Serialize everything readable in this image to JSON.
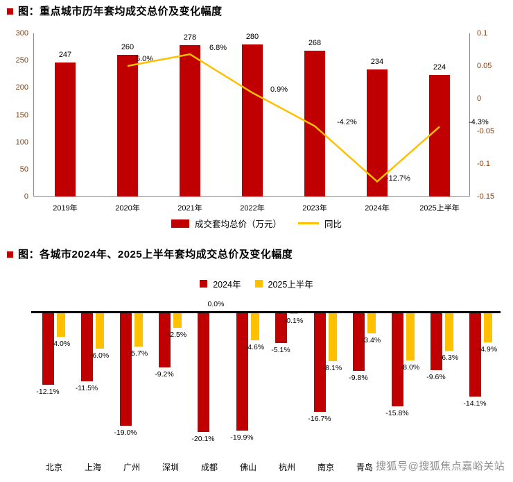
{
  "chart_data": [
    {
      "type": "bar+line",
      "title": "图：重点城市历年套均成交总价及变化幅度",
      "categories": [
        "2019年",
        "2020年",
        "2021年",
        "2022年",
        "2023年",
        "2024年",
        "2025上半年"
      ],
      "bar_series": {
        "name": "成交套均总价（万元）",
        "color": "#c00000",
        "values": [
          247,
          260,
          278,
          280,
          268,
          234,
          224
        ]
      },
      "line_series": {
        "name": "同比",
        "color": "#ffc000",
        "values": [
          null,
          0.05,
          0.068,
          0.009,
          -0.042,
          -0.127,
          -0.043
        ],
        "labels": [
          "",
          "5.0%",
          "6.8%",
          "0.9%",
          "-4.2%",
          "-12.7%",
          "-4.3%"
        ]
      },
      "left_axis": {
        "ticks": [
          0,
          50,
          100,
          150,
          200,
          250,
          300
        ],
        "max": 300
      },
      "right_axis": {
        "ticks": [
          "0.1",
          "0.05",
          "0",
          "-0.05",
          "-0.1",
          "-0.15"
        ],
        "max": 0.1,
        "min": -0.15
      },
      "legend_position": "bottom"
    },
    {
      "type": "grouped-bar",
      "title": "图：各城市2024年、2025上半年套均成交总价及变化幅度",
      "categories": [
        "北京",
        "上海",
        "广州",
        "深圳",
        "成都",
        "佛山",
        "杭州",
        "南京",
        "青岛",
        "",
        "",
        ""
      ],
      "series": [
        {
          "name": "2024年",
          "color": "#c00000",
          "values": [
            -12.1,
            -11.5,
            -19.0,
            -9.2,
            -20.1,
            -19.9,
            -5.1,
            -16.7,
            -9.8,
            -15.8,
            -9.6,
            -14.1
          ],
          "labels": [
            "-12.1%",
            "-11.5%",
            "-19.0%",
            "-9.2%",
            "-20.1%",
            "-19.9%",
            "-5.1%",
            "-16.7%",
            "-9.8%",
            "-15.8%",
            "-9.6%",
            "-14.1%"
          ]
        },
        {
          "name": "2025上半年",
          "color": "#ffc000",
          "values": [
            -4.0,
            -6.0,
            -5.7,
            -2.5,
            0.0,
            -4.6,
            -0.1,
            -8.1,
            -3.4,
            -8.0,
            -6.3,
            -4.9
          ],
          "labels": [
            "-4.0%",
            "-6.0%",
            "-5.7%",
            "-2.5%",
            "0.0%",
            "-4.6%",
            "-0.1%",
            "-8.1%",
            "-3.4%",
            "-8.0%",
            "-6.3%",
            "-4.9%"
          ]
        }
      ],
      "legend_position": "top"
    }
  ],
  "watermark": "搜狐号@搜狐焦点嘉峪关站",
  "colors": {
    "bar_red": "#c00000",
    "accent_yellow": "#ffc000",
    "axis_text": "#843c0c",
    "watermark_gray": "#8f8f8f"
  }
}
